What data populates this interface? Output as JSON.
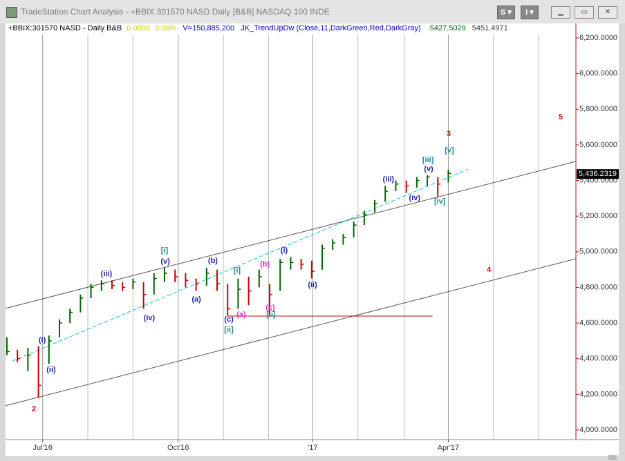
{
  "window": {
    "title": "TradeStation Chart Analysis - +BBIX:301570 NASD Daily [B&B] NASDAQ 100 INDE"
  },
  "chart_data": {
    "type": "ohlc",
    "header": {
      "symbol": "+BBIX:301570 NASD - Daily  B&B",
      "change": "0.0000",
      "change_pct": "0.00%",
      "volume": "V=150,885,200",
      "indicator": "JK_TrendUpDw (Close,11,DarkGreen,Red,DarkGray)",
      "indicator_values": [
        5427.5029,
        5451.4971
      ]
    },
    "x": [
      0,
      1,
      2,
      3,
      4,
      5,
      6,
      7,
      8,
      9,
      10,
      11,
      12,
      13,
      14,
      15,
      16,
      17,
      18,
      19,
      20,
      21,
      22,
      23,
      24,
      25,
      26,
      27,
      28,
      29,
      30,
      31,
      32,
      33,
      34,
      35,
      36,
      37,
      38,
      39,
      40,
      41,
      42
    ],
    "high": [
      4520,
      4450,
      4460,
      4470,
      4530,
      4620,
      4680,
      4760,
      4820,
      4840,
      4840,
      4830,
      4850,
      4830,
      4880,
      4910,
      4900,
      4880,
      4850,
      4910,
      4900,
      4820,
      4850,
      4860,
      4900,
      4820,
      4960,
      4970,
      4960,
      4950,
      5040,
      5070,
      5100,
      5170,
      5230,
      5290,
      5370,
      5400,
      5400,
      5420,
      5430,
      5420,
      5460
    ],
    "low": [
      4420,
      4380,
      4330,
      4180,
      4370,
      4520,
      4600,
      4660,
      4740,
      4780,
      4790,
      4780,
      4790,
      4680,
      4760,
      4830,
      4830,
      4800,
      4780,
      4810,
      4780,
      4640,
      4680,
      4700,
      4800,
      4640,
      4780,
      4900,
      4900,
      4850,
      4900,
      5010,
      5040,
      5080,
      5150,
      5220,
      5280,
      5340,
      5330,
      5360,
      5370,
      5310,
      5390
    ],
    "close": [
      4440,
      4400,
      4420,
      4250,
      4500,
      4600,
      4660,
      4740,
      4800,
      4820,
      4810,
      4800,
      4830,
      4760,
      4850,
      4880,
      4860,
      4840,
      4820,
      4880,
      4820,
      4680,
      4790,
      4780,
      4860,
      4760,
      4940,
      4940,
      4930,
      4890,
      5020,
      5050,
      5080,
      5150,
      5210,
      5270,
      5340,
      5380,
      5370,
      5400,
      5420,
      5380,
      5440
    ],
    "up_color": "#006400",
    "down_color": "#cc0000",
    "xlim": [
      -0.13,
      54.14
    ],
    "xticks": [
      {
        "value": 3.4,
        "label": "Jul'16"
      },
      {
        "value": 16.3,
        "label": "Oct'16"
      },
      {
        "value": 29.1,
        "label": "'17"
      },
      {
        "value": 42.0,
        "label": "Apr'17"
      }
    ],
    "xminor": [
      7.7,
      12.0,
      20.6,
      24.9,
      33.4,
      37.8,
      46.3,
      50.6
    ],
    "ylim": [
      4000,
      6200
    ],
    "yticks": [
      {
        "value": 4000,
        "label": "4,000.0000"
      },
      {
        "value": 4200,
        "label": "4,200.0000"
      },
      {
        "value": 4400,
        "label": "4,400.0000"
      },
      {
        "value": 4600,
        "label": "4,600.0000"
      },
      {
        "value": 4800,
        "label": "4,800.0000"
      },
      {
        "value": 5000,
        "label": "5,000.0000"
      },
      {
        "value": 5200,
        "label": "5,200.0000"
      },
      {
        "value": 5400,
        "label": "5,400.0000"
      },
      {
        "value": 5600,
        "label": "5,600.0000"
      },
      {
        "value": 5800,
        "label": "5,800.0000"
      },
      {
        "value": 6000,
        "label": "6,000.0000"
      },
      {
        "value": 6200,
        "label": "6,200.0000"
      }
    ],
    "last": {
      "value": 5436.2319,
      "label": "5,436.2319"
    },
    "lines": [
      {
        "x": [
          -0.13,
          54.14
        ],
        "y": [
          4682,
          5507
        ],
        "color": "#555555",
        "dash": false
      },
      {
        "x": [
          -0.13,
          54.14
        ],
        "y": [
          4136,
          4961
        ],
        "color": "#555555",
        "dash": false
      },
      {
        "x": [
          0.53,
          43.9
        ],
        "y": [
          4387,
          5464
        ],
        "color": "#00cccc",
        "dash": true
      },
      {
        "x": [
          21.05,
          40.5
        ],
        "y": [
          4639,
          4639
        ],
        "color": "#cc0000",
        "dash": false
      }
    ],
    "annotations": [
      {
        "text": "2",
        "x": 2.57,
        "y": 4116,
        "color": "#dd0000"
      },
      {
        "text": "(i)",
        "x": 3.36,
        "y": 4504,
        "color": "#2222aa"
      },
      {
        "text": "(ii)",
        "x": 4.21,
        "y": 4337,
        "color": "#2222aa"
      },
      {
        "text": "(iii)",
        "x": 9.47,
        "y": 4875,
        "color": "#2222aa"
      },
      {
        "text": "(iv)",
        "x": 13.55,
        "y": 4627,
        "color": "#2222aa"
      },
      {
        "text": "[i]",
        "x": 15.0,
        "y": 5007,
        "color": "#1a8a8a"
      },
      {
        "text": "(v)",
        "x": 15.07,
        "y": 4945,
        "color": "#2222aa"
      },
      {
        "text": "(a)",
        "x": 18.03,
        "y": 4732,
        "color": "#2222aa"
      },
      {
        "text": "(b)",
        "x": 19.6,
        "y": 4949,
        "color": "#2222aa"
      },
      {
        "text": "[i]",
        "x": 21.9,
        "y": 4895,
        "color": "#1a8a8a"
      },
      {
        "text": "(c)",
        "x": 21.12,
        "y": 4620,
        "color": "#2222aa"
      },
      {
        "text": "[ii]",
        "x": 21.12,
        "y": 4562,
        "color": "#1a8a8a"
      },
      {
        "text": "(a)",
        "x": 22.3,
        "y": 4647,
        "color": "#cc33cc"
      },
      {
        "text": "(b)",
        "x": 24.54,
        "y": 4930,
        "color": "#cc33cc"
      },
      {
        "text": "(c)",
        "x": 25.07,
        "y": 4686,
        "color": "#cc33cc"
      },
      {
        "text": "[ii]",
        "x": 25.13,
        "y": 4647,
        "color": "#1a8a8a"
      },
      {
        "text": "(i)",
        "x": 26.38,
        "y": 5007,
        "color": "#2222aa"
      },
      {
        "text": "(ii)",
        "x": 29.08,
        "y": 4813,
        "color": "#2222aa"
      },
      {
        "text": "(iii)",
        "x": 36.3,
        "y": 5406,
        "color": "#2222aa"
      },
      {
        "text": "(iv)",
        "x": 38.8,
        "y": 5301,
        "color": "#2222aa"
      },
      {
        "text": "[iii]",
        "x": 40.07,
        "y": 5514,
        "color": "#1a8a8a"
      },
      {
        "text": "(v)",
        "x": 40.13,
        "y": 5464,
        "color": "#2222aa"
      },
      {
        "text": "[iv]",
        "x": 41.2,
        "y": 5282,
        "color": "#1a8a8a"
      },
      {
        "text": "[v]",
        "x": 42.1,
        "y": 5569,
        "color": "#1a8a8a"
      },
      {
        "text": "3",
        "x": 42.04,
        "y": 5662,
        "color": "#dd0000"
      },
      {
        "text": "4",
        "x": 45.86,
        "y": 4899,
        "color": "#dd0000"
      },
      {
        "text": "5",
        "x": 52.7,
        "y": 5755,
        "color": "#dd0000"
      }
    ]
  }
}
